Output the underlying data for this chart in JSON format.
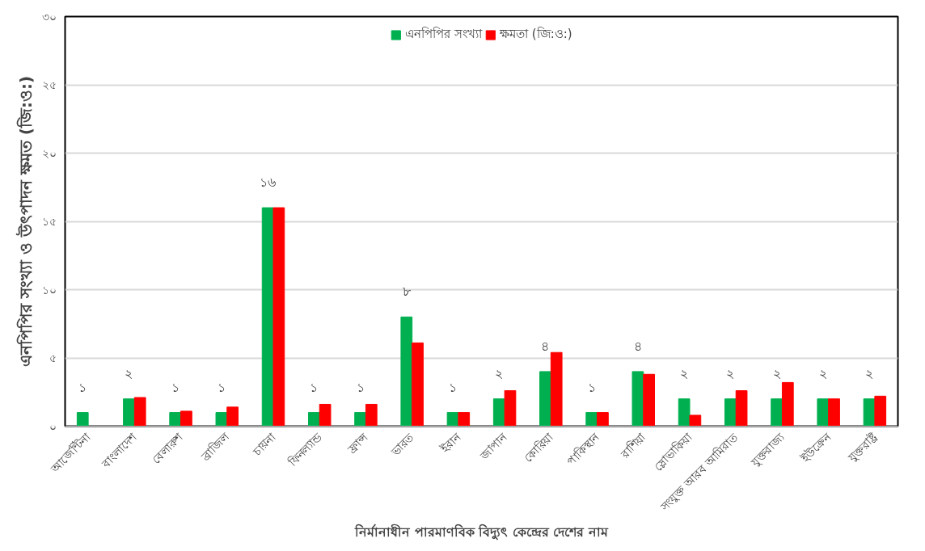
{
  "chart_data": {
    "type": "bar",
    "xlabel": "নির্মানাধীন পারমাণবিক বিদ্যুৎ কেন্দ্রের দেশের নাম",
    "ylabel": "এনপিপির সংখ্যা ও উৎপাদন ক্ষমত (জি:ও:)",
    "categories": [
      "আর্জেন্টিনা",
      "বাংলাদেশ",
      "বেলারুশ",
      "ব্রাজিল",
      "চায়না",
      "ফিনল্যান্ড",
      "ফ্রান্স",
      "ভারত",
      "ইরান",
      "জাপান",
      "কোরিয়া",
      "পাকিস্থান",
      "রাশিয়া",
      "স্লোভাকিয়া",
      "সংযুক্ত আরব আমিরাত",
      "যুক্তরাজ্য",
      "ইউক্রেন",
      "যুক্তরাষ্ট্র"
    ],
    "series": [
      {
        "name": "এনপিপির সংখ্যা",
        "color": "#00b050",
        "values": [
          1,
          2,
          1,
          1,
          16,
          1,
          1,
          8,
          1,
          2,
          4,
          1,
          4,
          2,
          2,
          2,
          2,
          2
        ],
        "value_labels": [
          "১",
          "২",
          "১",
          "১",
          "১৬",
          "১",
          "১",
          "৮",
          "১",
          "২",
          "৪",
          "১",
          "৪",
          "২",
          "২",
          "২",
          "২",
          "২"
        ]
      },
      {
        "name": "ক্ষমতা (জি:ও:)",
        "color": "#ff0000",
        "values": [
          null,
          2.1,
          1.1,
          1.4,
          16,
          1.6,
          1.6,
          6.1,
          1.0,
          2.6,
          5.4,
          1.0,
          3.8,
          0.8,
          2.6,
          3.2,
          2.0,
          2.2
        ]
      }
    ],
    "ylim": [
      0,
      30
    ],
    "yticks": [
      {
        "value": 0,
        "label": "০"
      },
      {
        "value": 5,
        "label": "৫"
      },
      {
        "value": 10,
        "label": "১০"
      },
      {
        "value": 15,
        "label": "১৫"
      },
      {
        "value": 20,
        "label": "২০"
      },
      {
        "value": 25,
        "label": "২৫"
      },
      {
        "value": 30,
        "label": "৩০"
      }
    ],
    "grid": "y",
    "legend": "top"
  }
}
